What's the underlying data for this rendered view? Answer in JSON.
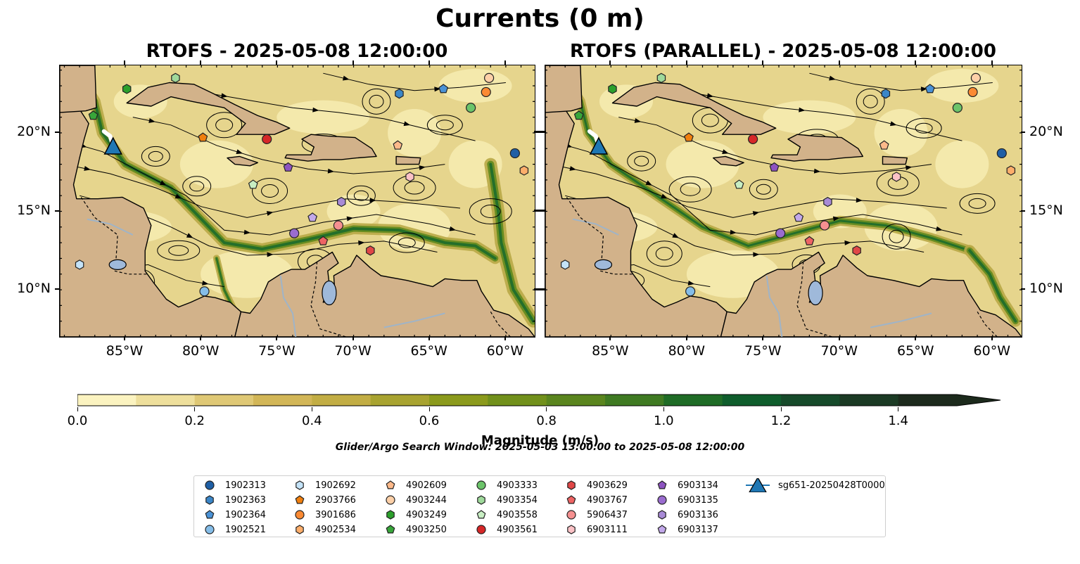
{
  "title": "Currents (0 m)",
  "panels": [
    {
      "title": "RTOFS - 2025-05-08 12:00:00"
    },
    {
      "title": "RTOFS (PARALLEL) - 2025-05-08 12:00:00"
    }
  ],
  "axes": {
    "lon_labels": [
      "85°W",
      "80°W",
      "75°W",
      "70°W",
      "65°W",
      "60°W"
    ],
    "lat_labels": [
      "20°N",
      "15°N",
      "10°N"
    ],
    "lon_range": [
      -89.3,
      -58.1
    ],
    "lat_range": [
      7.0,
      24.3
    ]
  },
  "colorbar": {
    "label": "Magnitude (m/s)",
    "ticks": [
      "0.0",
      "0.2",
      "0.4",
      "0.6",
      "0.8",
      "1.0",
      "1.2",
      "1.4"
    ],
    "range": [
      0.0,
      1.5
    ],
    "extend": "max",
    "colors": [
      "#fbf3c0",
      "#eedf9c",
      "#dfc875",
      "#d2b657",
      "#c2ad44",
      "#a8a330",
      "#8b9a1c",
      "#71901b",
      "#5a851e",
      "#3f7a22",
      "#1f6c26",
      "#0f5d2c",
      "#164a2a",
      "#1b3a24",
      "#1c2a1c"
    ]
  },
  "search_window": "Glider/Argo Search Window: 2025-05-03 13:00:00 to 2025-05-08 12:00:00",
  "glider": {
    "label": "sg651-20250428T0000",
    "lon": -85.8,
    "lat": 19.1,
    "color": "#1f77b4"
  },
  "floats": [
    {
      "id": "1902313",
      "marker": "circle",
      "color": "#1f5fa5",
      "lon": -59.4,
      "lat": 18.7
    },
    {
      "id": "1902363",
      "marker": "hexagon",
      "color": "#3a86c8",
      "lon": -67.0,
      "lat": 22.5
    },
    {
      "id": "1902364",
      "marker": "pentagon",
      "color": "#4a92d6",
      "lon": -64.1,
      "lat": 22.8
    },
    {
      "id": "1902521",
      "marker": "circle",
      "color": "#85bde8",
      "lon": -79.8,
      "lat": 9.9
    },
    {
      "id": "1902692",
      "marker": "hexagon",
      "color": "#c4e3f8",
      "lon": -88.0,
      "lat": 11.6
    },
    {
      "id": "2903766",
      "marker": "pentagon",
      "color": "#f07f0e",
      "lon": -79.9,
      "lat": 19.7
    },
    {
      "id": "3901686",
      "marker": "circle",
      "color": "#fb8a33",
      "lon": -61.3,
      "lat": 22.6
    },
    {
      "id": "4902534",
      "marker": "hexagon",
      "color": "#fdae6b",
      "lon": -58.8,
      "lat": 17.6
    },
    {
      "id": "4902609",
      "marker": "pentagon",
      "color": "#fdb98a",
      "lon": -67.1,
      "lat": 19.2
    },
    {
      "id": "4903244",
      "marker": "circle",
      "color": "#fdd0a8",
      "lon": -61.1,
      "lat": 23.5
    },
    {
      "id": "4903249",
      "marker": "hexagon",
      "color": "#2ca02c",
      "lon": -84.9,
      "lat": 22.8
    },
    {
      "id": "4903250",
      "marker": "pentagon",
      "color": "#38a63a",
      "lon": -87.1,
      "lat": 21.1
    },
    {
      "id": "4903333",
      "marker": "circle",
      "color": "#6cc46a",
      "lon": -62.3,
      "lat": 21.6
    },
    {
      "id": "4903354",
      "marker": "hexagon",
      "color": "#9fd99b",
      "lon": -81.7,
      "lat": 23.5
    },
    {
      "id": "4903558",
      "marker": "pentagon",
      "color": "#c8eec3",
      "lon": -76.6,
      "lat": 16.7
    },
    {
      "id": "4903561",
      "marker": "circle",
      "color": "#d62728",
      "lon": -75.7,
      "lat": 19.6
    },
    {
      "id": "4903629",
      "marker": "hexagon",
      "color": "#e04747",
      "lon": -68.9,
      "lat": 12.5
    },
    {
      "id": "4903767",
      "marker": "pentagon",
      "color": "#ee6464",
      "lon": -72.0,
      "lat": 13.1
    },
    {
      "id": "5906437",
      "marker": "circle",
      "color": "#f59090",
      "lon": -71.0,
      "lat": 14.1
    },
    {
      "id": "6903111",
      "marker": "hexagon",
      "color": "#fbc2c6",
      "lon": -66.3,
      "lat": 17.2
    },
    {
      "id": "6903134",
      "marker": "pentagon",
      "color": "#8d53c0",
      "lon": -74.3,
      "lat": 17.8
    },
    {
      "id": "6903135",
      "marker": "circle",
      "color": "#9a6ccf",
      "lon": -73.9,
      "lat": 13.6
    },
    {
      "id": "6903136",
      "marker": "hexagon",
      "color": "#a88ad6",
      "lon": -70.8,
      "lat": 15.6
    },
    {
      "id": "6903137",
      "marker": "pentagon",
      "color": "#c2a8ea",
      "lon": -72.7,
      "lat": 14.6
    }
  ],
  "legend_layout": {
    "columns": 7
  }
}
